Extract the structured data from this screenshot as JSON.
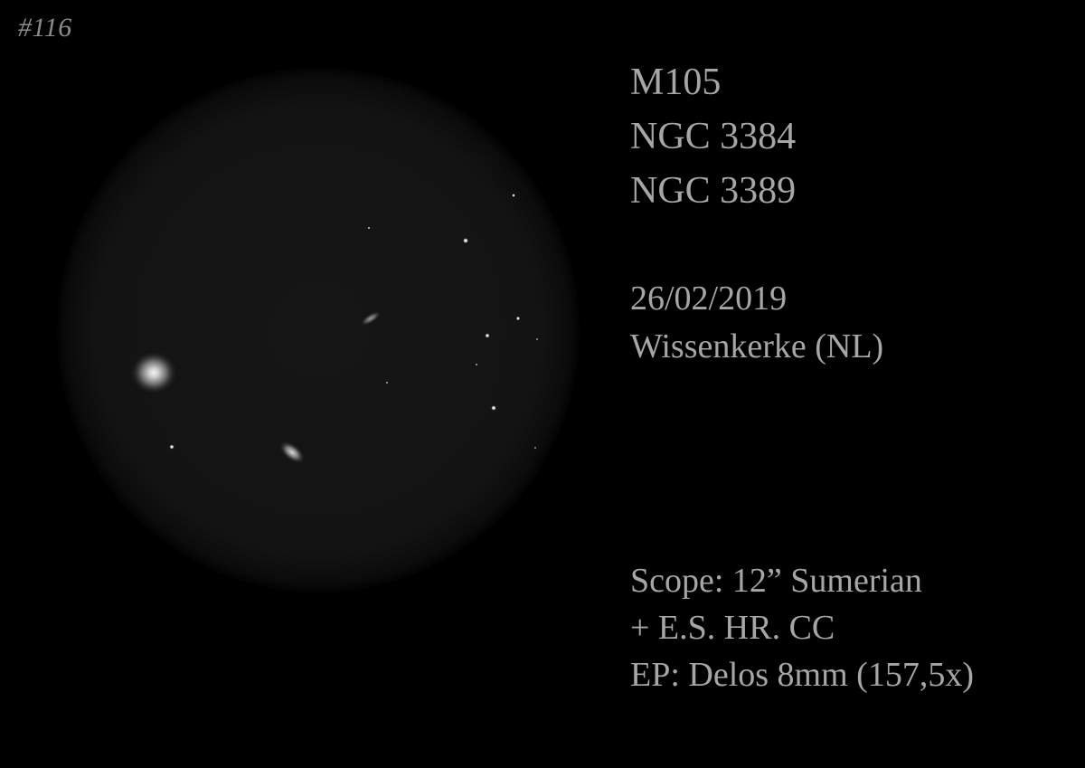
{
  "sketch": {
    "number": "#116"
  },
  "objects": [
    "M105",
    "NGC 3384",
    "NGC 3389"
  ],
  "observation": {
    "date": "26/02/2019",
    "location": "Wissenkerke (NL)"
  },
  "equipment": {
    "scope": "Scope: 12” Sumerian",
    "accessory": "+ E.S. HR. CC",
    "eyepiece": "EP: Delos 8mm (157,5x)"
  },
  "colors": {
    "background": "#000000",
    "field": "#141414",
    "text": "#a6a6a6"
  }
}
